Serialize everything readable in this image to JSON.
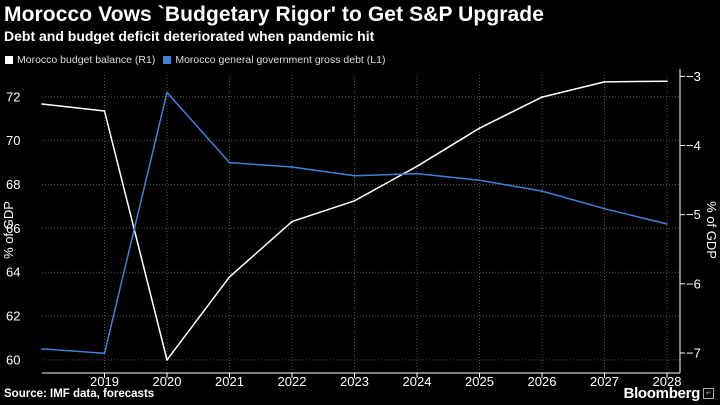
{
  "title": "Morocco Vows `Budgetary Rigor' to Get S&P Upgrade",
  "subtitle": "Debt and budget deficit deteriorated when pandemic hit",
  "source": "Source: IMF data, forecasts",
  "brand": "Bloomberg",
  "chart_data": {
    "type": "line",
    "x": [
      "2018",
      "2019",
      "2020",
      "2021",
      "2022",
      "2023",
      "2024",
      "2025",
      "2026",
      "2027",
      "2028"
    ],
    "xticks": [
      "2019",
      "2020",
      "2021",
      "2022",
      "2023",
      "2024",
      "2025",
      "2026",
      "2027",
      "2028"
    ],
    "series": [
      {
        "name": "Morocco budget balance (R1)",
        "axis": "right",
        "color": "#ffffff",
        "values": [
          -3.4,
          -3.5,
          -7.1,
          -5.9,
          -5.1,
          -4.8,
          -4.3,
          -3.75,
          -3.3,
          -3.08,
          -3.07
        ]
      },
      {
        "name": "Morocco general government gross debt (L1)",
        "axis": "left",
        "color": "#3d82d8",
        "values": [
          60.5,
          60.3,
          72.2,
          69.0,
          68.8,
          68.4,
          68.5,
          68.2,
          67.7,
          66.9,
          66.2
        ]
      }
    ],
    "left_axis": {
      "label": "% of GDP",
      "ticks": [
        60,
        62,
        64,
        66,
        68,
        70,
        72
      ],
      "ylim": [
        59.4,
        73.0
      ]
    },
    "right_axis": {
      "label": "% of GDP",
      "ticks": [
        -7,
        -6,
        -5,
        -4,
        -3
      ],
      "ylim": [
        -7.29,
        -2.98
      ]
    },
    "grid": true,
    "legend_position": "top-left"
  }
}
